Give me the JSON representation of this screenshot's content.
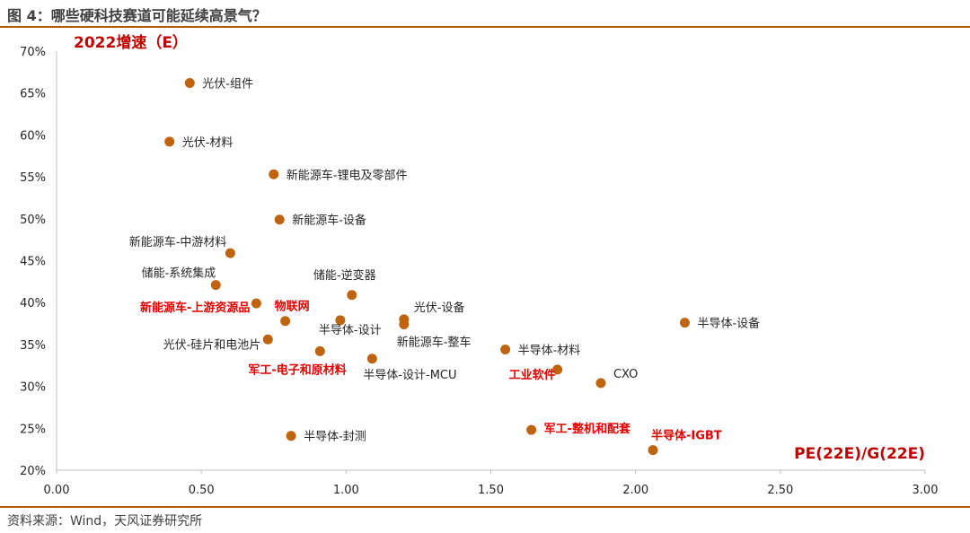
{
  "figure": {
    "title": "图 4：哪些硬科技赛道可能延续高景气？",
    "source": "资料来源：Wind，天风证券研究所"
  },
  "colors": {
    "marker": "#c0630f",
    "highlight": "#e00000",
    "axis_title": "#c00000",
    "rule": "#b55a00"
  },
  "chart_data": {
    "type": "scatter",
    "title": "哪些硬科技赛道可能延续高景气？",
    "xlabel": "PE(22E)/G(22E)",
    "ylabel": "2022增速（E）",
    "xlim": [
      0,
      3
    ],
    "ylim": [
      20,
      70
    ],
    "xticks": [
      "0.00",
      "0.50",
      "1.00",
      "1.50",
      "2.00",
      "2.50",
      "3.00"
    ],
    "yticks": [
      "20%",
      "25%",
      "30%",
      "35%",
      "40%",
      "45%",
      "50%",
      "55%",
      "60%",
      "65%",
      "70%"
    ],
    "grid": false,
    "points": [
      {
        "label": "光伏-组件",
        "x": 0.46,
        "y": 66.2,
        "highlight": false
      },
      {
        "label": "光伏-材料",
        "x": 0.39,
        "y": 59.2,
        "highlight": false
      },
      {
        "label": "新能源车-锂电及零部件",
        "x": 0.75,
        "y": 55.3,
        "highlight": false
      },
      {
        "label": "新能源车-设备",
        "x": 0.77,
        "y": 49.9,
        "highlight": false
      },
      {
        "label": "新能源车-中游材料",
        "x": 0.6,
        "y": 45.9,
        "highlight": false
      },
      {
        "label": "储能-系统集成",
        "x": 0.55,
        "y": 42.1,
        "highlight": false
      },
      {
        "label": "储能-逆变器",
        "x": 1.02,
        "y": 40.9,
        "highlight": false
      },
      {
        "label": "新能源车-上游资源品",
        "x": 0.69,
        "y": 39.9,
        "highlight": true
      },
      {
        "label": "物联网",
        "x": 0.79,
        "y": 37.8,
        "highlight": true
      },
      {
        "label": "半导体-设计",
        "x": 0.98,
        "y": 37.9,
        "highlight": false
      },
      {
        "label": "光伏-设备",
        "x": 1.2,
        "y": 38.0,
        "highlight": false
      },
      {
        "label": "新能源车-整车",
        "x": 1.2,
        "y": 37.4,
        "highlight": false
      },
      {
        "label": "光伏-硅片和电池片",
        "x": 0.73,
        "y": 35.6,
        "highlight": false
      },
      {
        "label": "军工-电子和原材料",
        "x": 0.91,
        "y": 34.2,
        "highlight": true
      },
      {
        "label": "半导体-设计-MCU",
        "x": 1.09,
        "y": 33.3,
        "highlight": false
      },
      {
        "label": "半导体-材料",
        "x": 1.55,
        "y": 34.4,
        "highlight": false
      },
      {
        "label": "工业软件",
        "x": 1.73,
        "y": 32.0,
        "highlight": true
      },
      {
        "label": "CXO",
        "x": 1.88,
        "y": 30.4,
        "highlight": false
      },
      {
        "label": "半导体-设备",
        "x": 2.17,
        "y": 37.6,
        "highlight": false
      },
      {
        "label": "半导体-封测",
        "x": 0.81,
        "y": 24.1,
        "highlight": false
      },
      {
        "label": "军工-整机和配套",
        "x": 1.64,
        "y": 24.8,
        "highlight": true
      },
      {
        "label": "半导体-IGBT",
        "x": 2.06,
        "y": 22.4,
        "highlight": true
      }
    ]
  }
}
